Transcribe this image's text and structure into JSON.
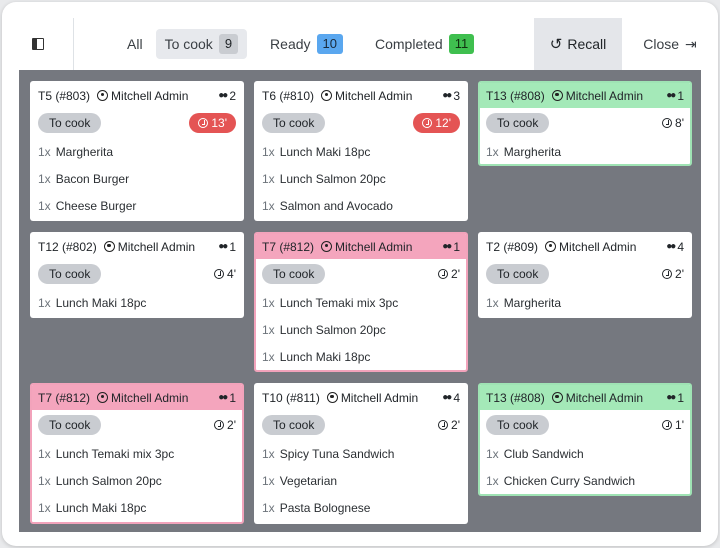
{
  "filters": {
    "all": "All",
    "to_cook": "To cook",
    "to_cook_count": "9",
    "ready": "Ready",
    "ready_count": "10",
    "completed": "Completed",
    "completed_count": "11"
  },
  "colors": {
    "to_cook_badge": "#c9ccd1",
    "ready_badge": "#5aa7ef",
    "completed_badge": "#3fbf4f",
    "late_timer": "#e45454",
    "green_header": "#a4e9b8",
    "pink_header": "#f4a5bd"
  },
  "icons": {
    "recall": "undo-arrow-icon",
    "close": "sign-out-icon",
    "user": "user-circle-icon",
    "guests": "users-icon",
    "timer": "clock-icon"
  },
  "actions": {
    "recall": "Recall",
    "close": "Close"
  },
  "orders": [
    {
      "table": "T5 (#803)",
      "user": "Mitchell Admin",
      "guests": "2",
      "status": "To cook",
      "timer": "13'",
      "late": true,
      "theme": "white",
      "lines": [
        {
          "qty": "1x",
          "name": "Margherita"
        },
        {
          "qty": "1x",
          "name": "Bacon Burger"
        },
        {
          "qty": "1x",
          "name": "Cheese Burger"
        }
      ]
    },
    {
      "table": "T6 (#810)",
      "user": "Mitchell Admin",
      "guests": "3",
      "status": "To cook",
      "timer": "12'",
      "late": true,
      "theme": "white",
      "lines": [
        {
          "qty": "1x",
          "name": "Lunch Maki 18pc"
        },
        {
          "qty": "1x",
          "name": "Lunch Salmon 20pc"
        },
        {
          "qty": "1x",
          "name": "Salmon and Avocado"
        }
      ]
    },
    {
      "table": "T13 (#808)",
      "user": "Mitchell Admin",
      "guests": "1",
      "status": "To cook",
      "timer": "8'",
      "late": false,
      "theme": "green",
      "lines": [
        {
          "qty": "1x",
          "name": "Margherita"
        }
      ]
    },
    {
      "table": "T12 (#802)",
      "user": "Mitchell Admin",
      "guests": "1",
      "status": "To cook",
      "timer": "4'",
      "late": false,
      "theme": "white",
      "lines": [
        {
          "qty": "1x",
          "name": "Lunch Maki 18pc"
        }
      ]
    },
    {
      "table": "T7 (#812)",
      "user": "Mitchell Admin",
      "guests": "1",
      "status": "To cook",
      "timer": "2'",
      "late": false,
      "theme": "pink",
      "lines": [
        {
          "qty": "1x",
          "name": "Lunch Temaki mix 3pc"
        },
        {
          "qty": "1x",
          "name": "Lunch Salmon 20pc"
        },
        {
          "qty": "1x",
          "name": "Lunch Maki 18pc"
        }
      ]
    },
    {
      "table": "T2 (#809)",
      "user": "Mitchell Admin",
      "guests": "4",
      "status": "To cook",
      "timer": "2'",
      "late": false,
      "theme": "white",
      "lines": [
        {
          "qty": "1x",
          "name": "Margherita"
        }
      ]
    },
    {
      "table": "T7 (#812)",
      "user": "Mitchell Admin",
      "guests": "1",
      "status": "To cook",
      "timer": "2'",
      "late": false,
      "theme": "pink",
      "lines": [
        {
          "qty": "1x",
          "name": "Lunch Temaki mix 3pc"
        },
        {
          "qty": "1x",
          "name": "Lunch Salmon 20pc"
        },
        {
          "qty": "1x",
          "name": "Lunch Maki 18pc"
        }
      ]
    },
    {
      "table": "T10 (#811)",
      "user": "Mitchell Admin",
      "guests": "4",
      "status": "To cook",
      "timer": "2'",
      "late": false,
      "theme": "white",
      "lines": [
        {
          "qty": "1x",
          "name": "Spicy Tuna Sandwich"
        },
        {
          "qty": "1x",
          "name": "Vegetarian"
        },
        {
          "qty": "1x",
          "name": "Pasta Bolognese"
        }
      ]
    },
    {
      "table": "T13 (#808)",
      "user": "Mitchell Admin",
      "guests": "1",
      "status": "To cook",
      "timer": "1'",
      "late": false,
      "theme": "green",
      "lines": [
        {
          "qty": "1x",
          "name": "Club Sandwich"
        },
        {
          "qty": "1x",
          "name": "Chicken Curry Sandwich"
        }
      ]
    }
  ]
}
